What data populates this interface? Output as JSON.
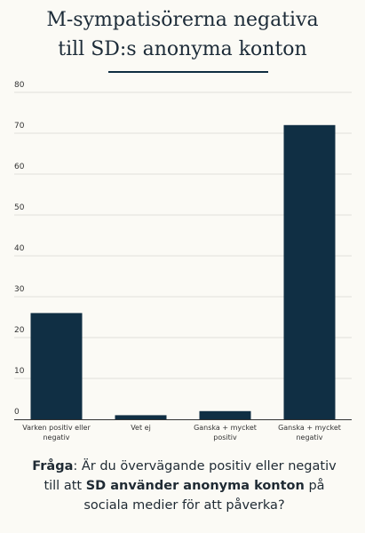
{
  "title_line1": "M-sympatisörerna negativa",
  "title_line2": "till SD:s anonyma konton",
  "question": {
    "label": "Fråga",
    "part1": ": Är du övervägande positiv eller negativ",
    "part2": "till att ",
    "highlight": "SD använder anonyma konton",
    "part3": " på",
    "part4": "sociala medier för att påverka?"
  },
  "colors": {
    "bar": "#102f44",
    "grid": "#e2e0da",
    "axis": "#333333",
    "text": "#333333",
    "background": "#fbfaf5"
  },
  "chart_data": {
    "type": "bar",
    "categories": [
      [
        "Varken positiv eller",
        "negativ"
      ],
      [
        "Vet ej"
      ],
      [
        "Ganska + mycket",
        "positiv"
      ],
      [
        "Ganska + mycket",
        "negativ"
      ]
    ],
    "values": [
      26,
      1,
      2,
      72
    ],
    "yticks": [
      0,
      10,
      20,
      30,
      40,
      50,
      60,
      70,
      80
    ],
    "ylim": [
      0,
      80
    ],
    "grid": true,
    "title": "M-sympatisörerna negativa till SD:s anonyma konton",
    "xlabel": "",
    "ylabel": ""
  }
}
